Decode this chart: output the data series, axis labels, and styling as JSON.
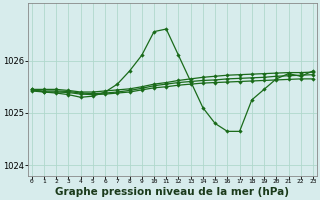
{
  "hours": [
    0,
    1,
    2,
    3,
    4,
    5,
    6,
    7,
    8,
    9,
    10,
    11,
    12,
    13,
    14,
    15,
    16,
    17,
    18,
    19,
    20,
    21,
    22,
    23
  ],
  "line_flat1": [
    1025.45,
    1025.45,
    1025.45,
    1025.43,
    1025.4,
    1025.4,
    1025.42,
    1025.44,
    1025.46,
    1025.5,
    1025.55,
    1025.58,
    1025.62,
    1025.65,
    1025.68,
    1025.7,
    1025.72,
    1025.73,
    1025.74,
    1025.75,
    1025.76,
    1025.77,
    1025.77,
    1025.78
  ],
  "line_flat2": [
    1025.43,
    1025.42,
    1025.42,
    1025.41,
    1025.38,
    1025.37,
    1025.38,
    1025.4,
    1025.43,
    1025.47,
    1025.52,
    1025.55,
    1025.58,
    1025.6,
    1025.62,
    1025.63,
    1025.65,
    1025.66,
    1025.67,
    1025.68,
    1025.7,
    1025.71,
    1025.72,
    1025.73
  ],
  "line_flat3": [
    1025.42,
    1025.4,
    1025.4,
    1025.39,
    1025.36,
    1025.35,
    1025.36,
    1025.38,
    1025.4,
    1025.44,
    1025.48,
    1025.5,
    1025.53,
    1025.55,
    1025.57,
    1025.58,
    1025.59,
    1025.6,
    1025.61,
    1025.62,
    1025.63,
    1025.64,
    1025.65,
    1025.65
  ],
  "line_spike": [
    1025.45,
    1025.4,
    1025.38,
    1025.35,
    1025.3,
    1025.32,
    1025.4,
    1025.55,
    1025.8,
    1026.1,
    1026.55,
    1026.6,
    1026.1,
    1025.6,
    1025.1,
    1024.8,
    1024.65,
    1024.65,
    1025.25,
    1025.45,
    1025.65,
    1025.75,
    1025.7,
    1025.8
  ],
  "bg_color": "#d7ecec",
  "grid_color": "#b0d8cc",
  "line_color": "#1a6b1a",
  "title": "Graphe pression niveau de la mer (hPa)",
  "ylim": [
    1023.8,
    1027.1
  ],
  "yticks": [
    1024,
    1025,
    1026
  ],
  "title_fontsize": 7.5,
  "marker": "D",
  "markersize": 2.2,
  "linewidth": 0.9
}
